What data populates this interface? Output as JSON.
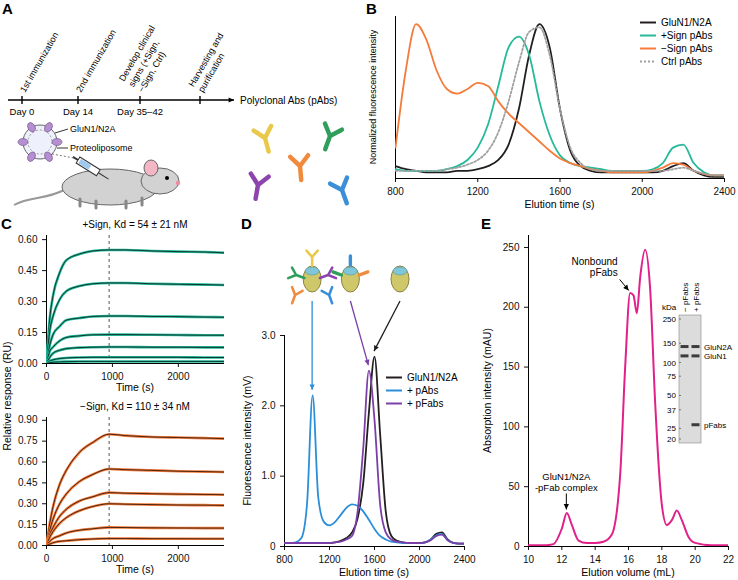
{
  "diagram": {
    "panel": "A",
    "timeline": [
      {
        "day": "Day 0",
        "event": "1st immunization"
      },
      {
        "day": "Day 14",
        "event": "2nd immunization"
      },
      {
        "day": "Day 35–42",
        "event": "Develop clinical signs (+Sign, −Sign, Ctrl)"
      },
      {
        "day": null,
        "event": "Harvesting and purification"
      }
    ],
    "liposome_labels": {
      "protein": "GluN1/N2A",
      "vesicle": "Proteoliposome"
    },
    "result": "Polyclonal Abs (pAbs)"
  },
  "chart_data": [
    {
      "panel": "B",
      "type": "line",
      "xlabel": "Elution time (s)",
      "ylabel": "Normalized fluorescence intensity",
      "x": [
        800,
        850,
        900,
        950,
        1000,
        1050,
        1100,
        1150,
        1200,
        1250,
        1300,
        1350,
        1400,
        1450,
        1500,
        1550,
        1600,
        1650,
        1700,
        1750,
        1800,
        1850,
        1900,
        1950,
        2000,
        2050,
        2100,
        2150,
        2200,
        2250,
        2300,
        2350,
        2400
      ],
      "xlim": [
        800,
        2400
      ],
      "xticks": [
        800,
        1200,
        1600,
        2000,
        2400
      ],
      "ylim": [
        0,
        1.05
      ],
      "yticks": [],
      "tick_labels": "x",
      "legend": "top-right",
      "series": [
        {
          "name": "GluN1/N2A",
          "color": "#231f20",
          "values": [
            0.08,
            0.06,
            0.05,
            0.04,
            0.04,
            0.04,
            0.05,
            0.05,
            0.06,
            0.08,
            0.12,
            0.22,
            0.45,
            0.8,
            1.0,
            0.85,
            0.45,
            0.18,
            0.08,
            0.05,
            0.04,
            0.04,
            0.04,
            0.04,
            0.04,
            0.04,
            0.05,
            0.08,
            0.1,
            0.05,
            0.02,
            0.01,
            0.01
          ]
        },
        {
          "name": "+Sign pAbs",
          "color": "#26b99a",
          "values": [
            0.06,
            0.05,
            0.05,
            0.05,
            0.05,
            0.06,
            0.08,
            0.12,
            0.2,
            0.35,
            0.6,
            0.85,
            0.92,
            0.8,
            0.5,
            0.28,
            0.15,
            0.1,
            0.08,
            0.07,
            0.06,
            0.05,
            0.05,
            0.05,
            0.05,
            0.06,
            0.1,
            0.2,
            0.22,
            0.1,
            0.04,
            0.02,
            0.02
          ]
        },
        {
          "name": "−Sign pAbs",
          "color": "#f47b3a",
          "values": [
            0.2,
            0.7,
            1.0,
            0.9,
            0.7,
            0.58,
            0.55,
            0.58,
            0.62,
            0.6,
            0.5,
            0.42,
            0.36,
            0.3,
            0.24,
            0.18,
            0.13,
            0.1,
            0.08,
            0.06,
            0.05,
            0.04,
            0.04,
            0.04,
            0.04,
            0.05,
            0.07,
            0.1,
            0.09,
            0.05,
            0.03,
            0.02,
            0.02
          ]
        },
        {
          "name": "Ctrl pAbs",
          "color": "#a0a0a0",
          "line_style": "dotted",
          "values": [
            0.05,
            0.05,
            0.05,
            0.05,
            0.05,
            0.06,
            0.07,
            0.09,
            0.12,
            0.18,
            0.3,
            0.5,
            0.75,
            0.95,
            0.98,
            0.8,
            0.45,
            0.2,
            0.1,
            0.06,
            0.05,
            0.05,
            0.05,
            0.05,
            0.05,
            0.05,
            0.05,
            0.06,
            0.07,
            0.05,
            0.03,
            0.02,
            0.02
          ]
        }
      ]
    },
    {
      "panel": "C",
      "type": "line",
      "ylabel": "Relative response (RU)",
      "subplots": [
        {
          "title": "+Sign, Kd = 54 ± 21 nM",
          "xlabel": "Time (s)",
          "color": "#26b99a",
          "vline": 950,
          "x": [
            0,
            50,
            100,
            200,
            300,
            500,
            700,
            950,
            1200,
            1600,
            2000,
            2400,
            2700
          ],
          "xlim": [
            0,
            2700
          ],
          "xticks": [
            0,
            1000,
            2000
          ],
          "ylim": [
            0,
            0.62
          ],
          "yticks": [
            {
              "value": 0,
              "label": "0.00"
            },
            0.15,
            {
              "value": 0.3,
              "label": "0.30"
            },
            0.45,
            {
              "value": 0.6,
              "label": "0.60"
            }
          ],
          "series": [
            {
              "values": [
                0,
                0.22,
                0.33,
                0.44,
                0.5,
                0.53,
                0.545,
                0.55,
                0.55,
                0.545,
                0.542,
                0.54,
                0.536
              ]
            },
            {
              "values": [
                0,
                0.16,
                0.23,
                0.31,
                0.35,
                0.375,
                0.386,
                0.39,
                0.39,
                0.386,
                0.384,
                0.382,
                0.38
              ]
            },
            {
              "values": [
                0,
                0.09,
                0.14,
                0.18,
                0.21,
                0.22,
                0.228,
                0.23,
                0.23,
                0.228,
                0.227,
                0.225,
                0.224
              ]
            },
            {
              "values": [
                0,
                0.06,
                0.08,
                0.11,
                0.126,
                0.134,
                0.139,
                0.14,
                0.14,
                0.139,
                0.138,
                0.137,
                0.137
              ]
            },
            {
              "values": [
                0,
                0.03,
                0.05,
                0.064,
                0.072,
                0.077,
                0.079,
                0.08,
                0.08,
                0.079,
                0.079,
                0.078,
                0.078
              ]
            },
            {
              "values": [
                0,
                0.012,
                0.018,
                0.024,
                0.027,
                0.029,
                0.03,
                0.03,
                0.03,
                0.03,
                0.03,
                0.029,
                0.029
              ]
            },
            {
              "values": [
                0,
                0.004,
                0.006,
                0.008,
                0.009,
                0.01,
                0.01,
                0.01,
                0.01,
                0.01,
                0.01,
                0.01,
                0.01
              ]
            }
          ]
        },
        {
          "title": "−Sign, Kd = 110 ± 34 nM",
          "xlabel": "Time (s)",
          "color": "#f47b3a",
          "vline": 950,
          "x": [
            0,
            50,
            100,
            200,
            300,
            500,
            700,
            950,
            1200,
            1600,
            2000,
            2400,
            2700
          ],
          "xlim": [
            0,
            2700
          ],
          "xticks": [
            0,
            1000,
            2000
          ],
          "ylim": [
            0,
            0.92
          ],
          "yticks": [
            {
              "value": 0,
              "label": "0.00"
            },
            0.15,
            {
              "value": 0.3,
              "label": "0.30"
            },
            0.45,
            {
              "value": 0.6,
              "label": "0.60"
            },
            0.75,
            {
              "value": 0.9,
              "label": "0.90"
            }
          ],
          "series": [
            {
              "values": [
                0,
                0.16,
                0.28,
                0.44,
                0.54,
                0.67,
                0.74,
                0.8,
                0.79,
                0.78,
                0.776,
                0.772,
                0.768
              ]
            },
            {
              "values": [
                0,
                0.11,
                0.19,
                0.3,
                0.37,
                0.46,
                0.51,
                0.55,
                0.545,
                0.54,
                0.534,
                0.531,
                0.528
              ]
            },
            {
              "values": [
                0,
                0.08,
                0.13,
                0.21,
                0.26,
                0.32,
                0.35,
                0.38,
                0.376,
                0.372,
                0.369,
                0.367,
                0.365
              ]
            },
            {
              "values": [
                0,
                0.06,
                0.1,
                0.16,
                0.2,
                0.25,
                0.28,
                0.3,
                0.297,
                0.294,
                0.291,
                0.29,
                0.288
              ]
            },
            {
              "values": [
                0,
                0.03,
                0.05,
                0.07,
                0.09,
                0.11,
                0.12,
                0.13,
                0.129,
                0.127,
                0.126,
                0.125,
                0.125
              ]
            },
            {
              "values": [
                0,
                0.01,
                0.02,
                0.03,
                0.034,
                0.042,
                0.047,
                0.05,
                0.05,
                0.049,
                0.049,
                0.048,
                0.048
              ]
            }
          ]
        }
      ]
    },
    {
      "panel": "D",
      "type": "line",
      "xlabel": "Elution time (s)",
      "ylabel": "Fluorescence intensity (mV)",
      "x": [
        800,
        850,
        900,
        950,
        1000,
        1050,
        1100,
        1150,
        1200,
        1250,
        1300,
        1350,
        1400,
        1450,
        1500,
        1550,
        1600,
        1650,
        1700,
        1750,
        1800,
        1850,
        1900,
        1950,
        2000,
        2050,
        2100,
        2150,
        2200,
        2250,
        2300,
        2350,
        2400
      ],
      "xlim": [
        800,
        2400
      ],
      "xticks": [
        800,
        1200,
        1600,
        2000,
        2400
      ],
      "ylim": [
        0,
        3.0
      ],
      "yticks": [
        0,
        {
          "value": 1,
          "label": "1.0"
        },
        {
          "value": 2,
          "label": "2.0"
        },
        {
          "value": 3,
          "label": "3.0"
        }
      ],
      "legend": "top-right",
      "series": [
        {
          "name": "GluN1/N2A",
          "color": "#231f20",
          "values": [
            0.05,
            0.05,
            0.05,
            0.05,
            0.05,
            0.05,
            0.05,
            0.05,
            0.05,
            0.06,
            0.08,
            0.12,
            0.2,
            0.4,
            0.9,
            1.9,
            2.7,
            1.6,
            0.5,
            0.15,
            0.08,
            0.06,
            0.05,
            0.05,
            0.05,
            0.06,
            0.1,
            0.18,
            0.2,
            0.1,
            0.05,
            0.04,
            0.04
          ]
        },
        {
          "name": "+ pAbs",
          "color": "#2a8fd8",
          "values": [
            0.05,
            0.05,
            0.06,
            0.12,
            0.6,
            2.15,
            0.7,
            0.35,
            0.3,
            0.35,
            0.45,
            0.55,
            0.6,
            0.58,
            0.5,
            0.38,
            0.25,
            0.15,
            0.1,
            0.07,
            0.06,
            0.05,
            0.05,
            0.05,
            0.05,
            0.06,
            0.1,
            0.16,
            0.18,
            0.09,
            0.05,
            0.04,
            0.04
          ]
        },
        {
          "name": "+ pFabs",
          "color": "#7b3fa8",
          "values": [
            0.05,
            0.05,
            0.05,
            0.05,
            0.05,
            0.05,
            0.05,
            0.05,
            0.05,
            0.06,
            0.07,
            0.1,
            0.15,
            0.5,
            1.4,
            2.5,
            1.8,
            0.6,
            0.2,
            0.1,
            0.07,
            0.06,
            0.05,
            0.05,
            0.05,
            0.06,
            0.09,
            0.15,
            0.17,
            0.09,
            0.05,
            0.04,
            0.04
          ]
        }
      ]
    },
    {
      "panel": "E",
      "type": "line",
      "xlabel": "Elution volume (mL)",
      "ylabel": "Absorption intensity (mAU)",
      "color": "#e0218a",
      "x": [
        10,
        11,
        11.5,
        12,
        12.3,
        12.6,
        13,
        13.5,
        14,
        14.5,
        15,
        15.5,
        15.8,
        16.1,
        16.3,
        16.5,
        16.7,
        17,
        17.3,
        17.6,
        18,
        18.3,
        18.6,
        18.9,
        19.2,
        19.6,
        20,
        21,
        22
      ],
      "values": [
        1,
        1,
        2,
        15,
        28,
        18,
        5,
        3,
        3,
        4,
        10,
        60,
        150,
        212,
        210,
        195,
        225,
        248,
        215,
        120,
        35,
        18,
        22,
        30,
        22,
        8,
        3,
        1,
        1
      ],
      "xlim": [
        10,
        22
      ],
      "xticks": [
        10,
        12,
        14,
        16,
        18,
        20,
        22
      ],
      "ylim": [
        0,
        260
      ],
      "yticks": [
        0,
        50,
        100,
        150,
        200,
        250
      ],
      "annotations": [
        {
          "text": "Nonbound pFabs",
          "x": 16.1,
          "y": 212
        },
        {
          "text": "GluN1/N2A -pFab complex",
          "x": 12.3,
          "y": 28
        }
      ]
    }
  ],
  "gel": {
    "unit": "kDa",
    "markers": [
      250,
      150,
      100,
      75,
      50,
      37,
      25,
      20
    ],
    "lanes": [
      "− pFabs",
      "+ pFabs"
    ],
    "bands": [
      {
        "label": "GluN2A",
        "kda": 140,
        "lanes": [
          0,
          1
        ]
      },
      {
        "label": "GluN1",
        "kda": 115,
        "lanes": [
          0,
          1
        ]
      },
      {
        "label": "pFabs",
        "kda": 27,
        "lanes": [
          1
        ]
      }
    ]
  }
}
